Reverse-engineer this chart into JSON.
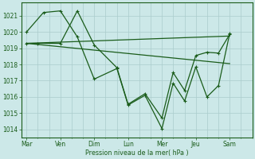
{
  "xlabel": "Pression niveau de la mer( hPa )",
  "bg_color": "#cce8e8",
  "grid_color": "#aacccc",
  "line_color": "#1a5c1a",
  "ylim": [
    1013.5,
    1021.8
  ],
  "yticks": [
    1014,
    1015,
    1016,
    1017,
    1018,
    1019,
    1020,
    1021
  ],
  "xtick_labels": [
    "Mar",
    "Ven",
    "Dim",
    "Lun",
    "Mer",
    "Jeu",
    "Sam"
  ],
  "xtick_positions": [
    0,
    1,
    2,
    3,
    4,
    5,
    6
  ],
  "series1_x": [
    0,
    0.5,
    1.0,
    1.5,
    2.0,
    2.67,
    3.0,
    3.5,
    4.0,
    4.33,
    4.67,
    5.0,
    5.33,
    5.67,
    6.0
  ],
  "series1_y": [
    1020.0,
    1021.2,
    1021.3,
    1019.7,
    1017.1,
    1017.75,
    1015.5,
    1016.1,
    1014.05,
    1016.85,
    1015.75,
    1017.85,
    1016.0,
    1016.7,
    1019.9
  ],
  "series2_x": [
    0,
    0.33,
    1.0,
    1.5,
    2.0,
    2.67,
    3.0,
    3.5,
    4.0,
    4.33,
    4.67,
    5.0,
    5.33,
    5.67,
    6.0
  ],
  "series2_y": [
    1019.3,
    1019.3,
    1019.3,
    1021.3,
    1019.2,
    1017.8,
    1015.55,
    1016.2,
    1014.7,
    1017.5,
    1016.4,
    1018.55,
    1018.75,
    1018.7,
    1019.85
  ],
  "trend1_x": [
    0,
    6
  ],
  "trend1_y": [
    1019.3,
    1019.75
  ],
  "trend2_x": [
    0,
    6
  ],
  "trend2_y": [
    1019.3,
    1018.05
  ],
  "lw": 0.9,
  "marker_size": 3.5
}
